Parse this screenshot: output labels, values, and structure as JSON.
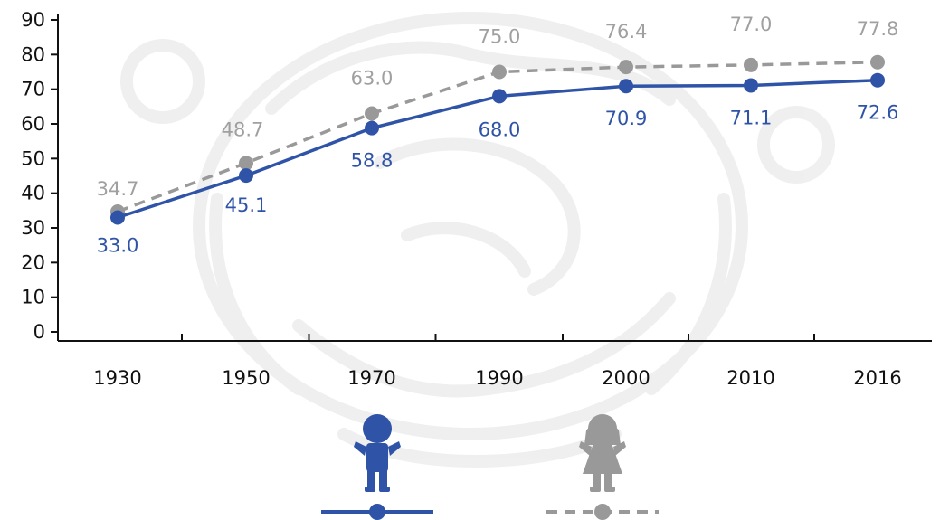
{
  "chart_data": {
    "type": "line",
    "categories": [
      "1930",
      "1950",
      "1970",
      "1990",
      "2000",
      "2010",
      "2016"
    ],
    "ylim": [
      0,
      90
    ],
    "yticks": [
      "0",
      "10",
      "20",
      "30",
      "40",
      "50",
      "60",
      "70",
      "80",
      "90"
    ],
    "series": [
      {
        "values": [
          33.0,
          45.1,
          58.8,
          68.0,
          70.9,
          71.1,
          72.6
        ],
        "labels": [
          "33.0",
          "45.1",
          "58.8",
          "68.0",
          "70.9",
          "71.1",
          "72.6"
        ],
        "color": "#2f54a7",
        "style": "solid",
        "legend_icon": "boy-icon"
      },
      {
        "values": [
          34.7,
          48.7,
          63.0,
          75.0,
          76.4,
          77.0,
          77.8
        ],
        "labels": [
          "34.7",
          "48.7",
          "63.0",
          "75.0",
          "76.4",
          "77.0",
          "77.8"
        ],
        "color": "#999999",
        "style": "dashed",
        "legend_icon": "girl-icon"
      }
    ],
    "grid": false,
    "legend_position": "bottom",
    "background": "faint watermark emblem"
  }
}
